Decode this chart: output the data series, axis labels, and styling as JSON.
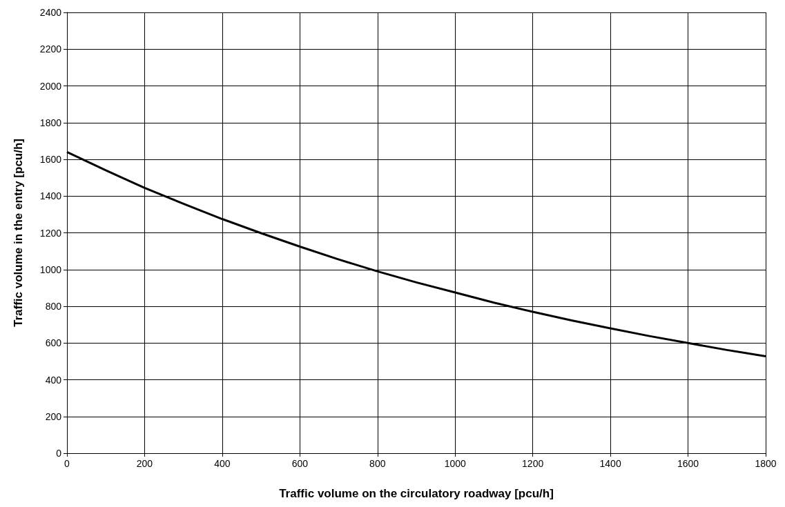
{
  "chart_data": {
    "type": "line",
    "xlabel": "Traffic volume on the circulatory roadway [pcu/h]",
    "ylabel": "Traffic volume in the entry [pcu/h]",
    "x": [
      0,
      100,
      200,
      300,
      400,
      500,
      600,
      700,
      800,
      900,
      1000,
      1100,
      1200,
      1300,
      1400,
      1500,
      1600,
      1700,
      1800
    ],
    "series": [
      {
        "color": "#000000",
        "values": [
          1640,
          1540,
          1445,
          1358,
          1275,
          1198,
          1125,
          1055,
          990,
          930,
          875,
          820,
          770,
          723,
          680,
          638,
          600,
          562,
          528
        ]
      }
    ],
    "xlim": [
      0,
      1800
    ],
    "xticks": [
      0,
      200,
      400,
      600,
      800,
      1000,
      1200,
      1400,
      1600,
      1800
    ],
    "ylim": [
      0,
      2400
    ],
    "yticks": [
      0,
      200,
      400,
      600,
      800,
      1000,
      1200,
      1400,
      1600,
      1800,
      2000,
      2200,
      2400
    ],
    "grid": true,
    "marker": "none",
    "line_style": "solid"
  }
}
